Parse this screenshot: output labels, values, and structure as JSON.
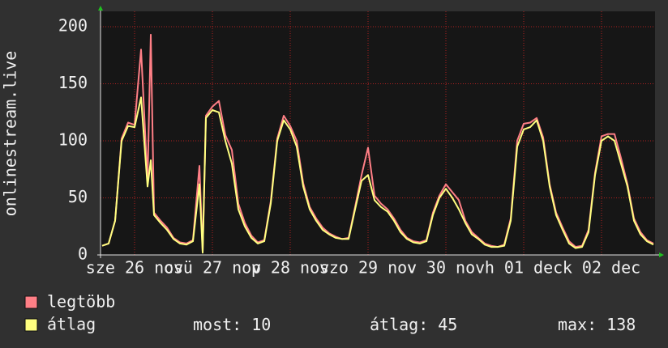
{
  "chart_data": {
    "type": "line",
    "y_label": "onlinestream.live",
    "x": [
      2,
      4,
      6,
      8,
      10,
      12,
      14,
      16,
      17,
      18,
      20,
      22,
      24,
      26,
      28,
      30,
      32,
      33,
      34,
      36,
      38,
      40,
      42,
      44,
      46,
      48,
      50,
      52,
      54,
      56,
      58,
      60,
      62,
      64,
      66,
      68,
      70,
      72,
      74,
      76,
      78,
      80,
      82,
      84,
      86,
      88,
      90,
      92,
      94,
      96,
      98,
      100,
      102,
      104,
      106,
      108,
      110,
      112,
      114,
      116,
      118,
      120,
      122,
      124,
      126,
      128,
      130,
      132,
      134,
      136,
      138,
      140,
      142,
      144,
      146,
      148,
      150,
      152,
      154,
      156,
      158,
      160,
      162,
      164,
      166,
      168,
      170,
      172
    ],
    "series": [
      {
        "name": "legtöbb",
        "color": "#ff7f86",
        "values": [
          8,
          10,
          30,
          102,
          116,
          114,
          180,
          65,
          193,
          37,
          30,
          24,
          15,
          11,
          10,
          13,
          78,
          3,
          122,
          130,
          135,
          105,
          92,
          45,
          28,
          17,
          11,
          13,
          47,
          102,
          122,
          113,
          100,
          63,
          42,
          32,
          24,
          19,
          16,
          14,
          15,
          42,
          70,
          94,
          52,
          45,
          40,
          32,
          22,
          15,
          12,
          11,
          13,
          37,
          52,
          62,
          55,
          48,
          30,
          20,
          15,
          10,
          8,
          7,
          9,
          32,
          100,
          115,
          116,
          120,
          103,
          62,
          37,
          24,
          12,
          7,
          8,
          22,
          72,
          104,
          106,
          106,
          85,
          62,
          32,
          20,
          13,
          10
        ]
      },
      {
        "name": "átlag",
        "color": "#ffff80",
        "values": [
          8,
          10,
          30,
          100,
          113,
          112,
          138,
          60,
          83,
          35,
          28,
          22,
          14,
          10,
          9,
          12,
          62,
          2,
          120,
          127,
          125,
          100,
          80,
          40,
          25,
          15,
          10,
          12,
          45,
          100,
          118,
          110,
          95,
          60,
          40,
          30,
          22,
          18,
          15,
          14,
          14,
          40,
          65,
          70,
          48,
          42,
          38,
          30,
          20,
          14,
          11,
          10,
          12,
          35,
          50,
          58,
          50,
          40,
          28,
          18,
          14,
          9,
          7,
          7,
          8,
          30,
          95,
          110,
          112,
          118,
          100,
          60,
          35,
          22,
          10,
          6,
          7,
          20,
          70,
          100,
          104,
          100,
          80,
          60,
          30,
          18,
          12,
          9
        ]
      }
    ],
    "xlim": [
      1.5,
      172.5
    ],
    "xticks": [
      {
        "value": 12,
        "label": "sze 26 nov"
      },
      {
        "value": 36,
        "label": "csü 27 nov"
      },
      {
        "value": 60,
        "label": "p 28 nov"
      },
      {
        "value": 84,
        "label": "szo 29 nov"
      },
      {
        "value": 108,
        "label": "v 30 nov"
      },
      {
        "value": 132,
        "label": "h 01 dec"
      },
      {
        "value": 156,
        "label": "k 02 dec"
      }
    ],
    "ylim": [
      0,
      213.5
    ],
    "yticks": [
      0,
      50,
      100,
      150,
      200
    ],
    "grid": true,
    "stats": [
      {
        "label": "most:",
        "value": 10
      },
      {
        "label": "átlag:",
        "value": 45
      },
      {
        "label": "max:",
        "value": 138
      }
    ]
  }
}
